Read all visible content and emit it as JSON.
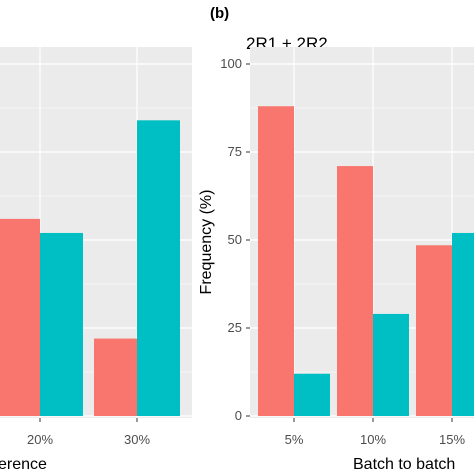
{
  "chart_data": [
    {
      "type": "bar",
      "panel_label": "",
      "title": "",
      "xlabel": "erence",
      "ylabel": "",
      "categories": [
        "",
        "20%",
        "30%"
      ],
      "ylim": [
        0,
        100
      ],
      "series": [
        {
          "color": "#F8766D",
          "values": [
            null,
            56,
            22
          ]
        },
        {
          "color": "#00BFC4",
          "values": [
            null,
            52,
            84
          ]
        }
      ],
      "grid": true
    },
    {
      "type": "bar",
      "panel_label": "(b)",
      "title": "2R1 + 2R2",
      "xlabel": "Batch to batch",
      "ylabel": "Frequency (%)",
      "categories": [
        "5%",
        "10%",
        "15%"
      ],
      "y_ticks": [
        0,
        25,
        50,
        75,
        100
      ],
      "ylim": [
        0,
        100
      ],
      "series": [
        {
          "color": "#F8766D",
          "values": [
            88,
            71,
            48.5
          ]
        },
        {
          "color": "#00BFC4",
          "values": [
            12,
            29,
            52
          ]
        }
      ],
      "grid": true
    }
  ]
}
